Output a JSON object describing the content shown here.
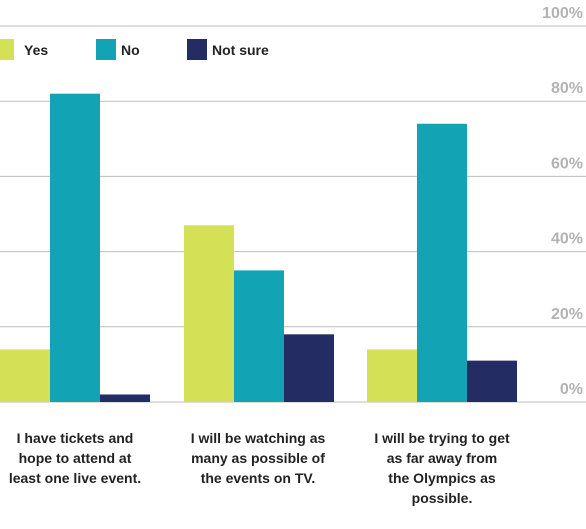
{
  "chart_data": {
    "type": "bar",
    "categories": [
      [
        "I have tickets and",
        "hope to attend at",
        "least one live event."
      ],
      [
        "I will be watching as",
        "many as possible of",
        "the events on TV."
      ],
      [
        "I will be trying to get",
        "as far away from",
        "the Olympics as",
        "possible."
      ]
    ],
    "series": [
      {
        "name": "Yes",
        "color": "#d4e157",
        "values": [
          14,
          47,
          14
        ]
      },
      {
        "name": "No",
        "color": "#12a3b4",
        "values": [
          82,
          35,
          74
        ]
      },
      {
        "name": "Not sure",
        "color": "#232c63",
        "values": [
          2,
          18,
          11
        ]
      }
    ],
    "y_ticks": [
      "0%",
      "20%",
      "40%",
      "60%",
      "80%",
      "100%"
    ],
    "ylim": [
      0,
      100
    ],
    "grid": true,
    "legend_position": "top-left"
  }
}
